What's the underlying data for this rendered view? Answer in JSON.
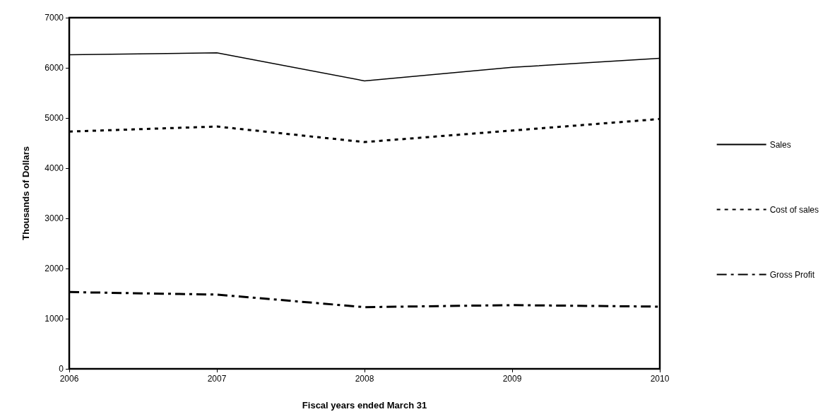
{
  "chart_data": {
    "type": "line",
    "xlabel": "Fiscal years ended March 31",
    "ylabel": "Thousands of Dollars",
    "x": [
      2006,
      2007,
      2008,
      2009,
      2010
    ],
    "xlim": [
      2006,
      2010
    ],
    "xticks": [
      2006,
      2007,
      2008,
      2009,
      2010
    ],
    "ylim": [
      0,
      7000
    ],
    "yticks": [
      0,
      1000,
      2000,
      3000,
      4000,
      5000,
      6000,
      7000
    ],
    "grid": false,
    "legend": "right",
    "marker": "none",
    "series": [
      {
        "name": "Sales",
        "color": "#000000",
        "line_style": "solid",
        "values": [
          6260,
          6300,
          5740,
          6010,
          6190
        ]
      },
      {
        "name": "Cost of sales",
        "color": "#000000",
        "line_style": "dotted",
        "values": [
          4730,
          4830,
          4520,
          4750,
          4980
        ]
      },
      {
        "name": "Gross Profit",
        "color": "#000000",
        "line_style": "dashed",
        "values": [
          1530,
          1480,
          1230,
          1270,
          1240
        ]
      }
    ]
  }
}
